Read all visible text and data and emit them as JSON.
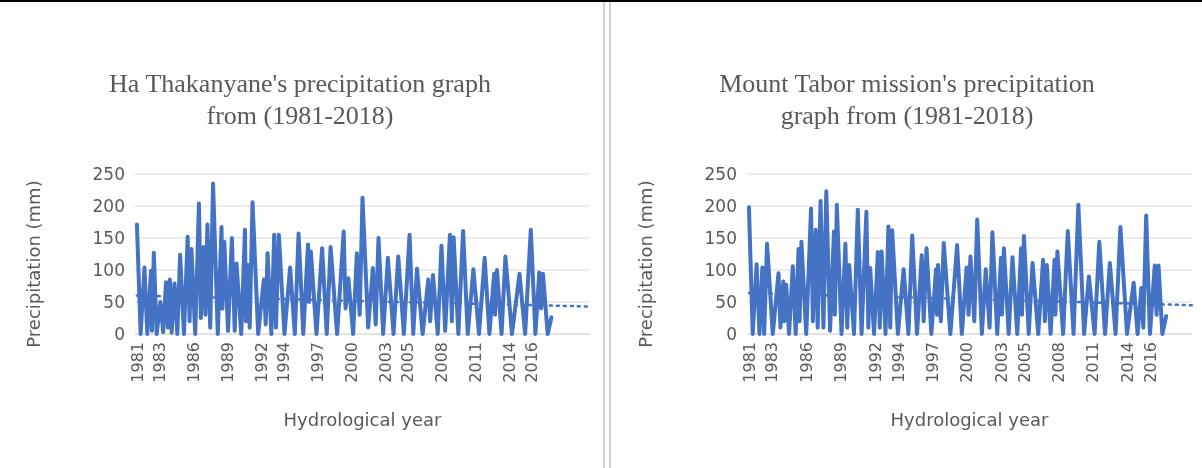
{
  "chart_data": [
    {
      "type": "line",
      "title": "Ha Thakanyane's precipitation graph from (1981-2018)",
      "xlabel": "Hydrological year",
      "ylabel": "Precipitation (mm)",
      "xlim": [
        1980.83,
        2021.17
      ],
      "xticks": [
        1981,
        1983,
        1986,
        1989,
        1992,
        1994,
        1997,
        2000,
        2003,
        2005,
        2008,
        2011,
        2014,
        2016
      ],
      "ylim": [
        0,
        250
      ],
      "yticks": [
        0,
        50,
        100,
        150,
        200,
        250
      ],
      "grid": "y",
      "series": [
        {
          "color": "#4472c4",
          "line_style": "solid",
          "x": [
            1981,
            1981.33,
            1981.67,
            1981.92,
            1982.25,
            1982.33,
            1982.5,
            1982.75,
            1983.08,
            1983.33,
            1983.58,
            1983.75,
            1983.92,
            1984.08,
            1984.33,
            1984.58,
            1984.83,
            1985.17,
            1985.5,
            1985.67,
            1985.83,
            1986.17,
            1986.5,
            1986.67,
            1986.92,
            1987.08,
            1987.25,
            1987.5,
            1987.75,
            1988.17,
            1988.5,
            1988.58,
            1988.75,
            1989.08,
            1989.42,
            1989.67,
            1989.83,
            1990.25,
            1990.58,
            1990.67,
            1990.83,
            1991,
            1991.25,
            1991.75,
            1992.25,
            1992.42,
            1992.58,
            1992.92,
            1993.17,
            1993.33,
            1993.58,
            1994.08,
            1994.58,
            1995,
            1995.33,
            1995.75,
            1996.17,
            1996.25,
            1996.42,
            1996.92,
            1997.42,
            1997.83,
            1998.17,
            1998.75,
            1999.33,
            1999.5,
            1999.75,
            2000.17,
            2000.5,
            2000.75,
            2001,
            2001.5,
            2001.92,
            2002.17,
            2002.42,
            2002.83,
            2003.25,
            2003.75,
            2004.17,
            2004.67,
            2005.17,
            2005.5,
            2005.83,
            2006.33,
            2006.83,
            2007,
            2007.25,
            2007.67,
            2008,
            2008.33,
            2008.75,
            2008.92,
            2009.08,
            2009.5,
            2009.92,
            2010.33,
            2010.83,
            2011.33,
            2011.83,
            2012.25,
            2012.67,
            2012.75,
            2012.92,
            2013.33,
            2013.67,
            2014.25,
            2014.92,
            2015.42,
            2015.92,
            2016.33,
            2016.67,
            2016.83,
            2017,
            2017.42,
            2017.75
          ],
          "values": [
            171,
            0,
            104,
            0,
            99,
            5,
            127,
            0,
            50,
            3,
            81,
            10,
            85,
            2,
            79,
            0,
            124,
            0,
            152,
            20,
            133,
            0,
            204,
            25,
            136,
            30,
            171,
            10,
            235,
            0,
            167,
            40,
            144,
            5,
            150,
            5,
            110,
            0,
            163,
            20,
            108,
            10,
            206,
            0,
            85,
            15,
            126,
            0,
            155,
            10,
            155,
            0,
            104,
            0,
            157,
            0,
            140,
            50,
            129,
            0,
            134,
            0,
            136,
            0,
            160,
            40,
            87,
            0,
            126,
            30,
            213,
            10,
            103,
            15,
            150,
            0,
            119,
            0,
            121,
            0,
            155,
            0,
            102,
            0,
            85,
            20,
            92,
            0,
            138,
            5,
            155,
            20,
            151,
            0,
            161,
            0,
            101,
            0,
            119,
            0,
            94,
            30,
            100,
            0,
            121,
            0,
            94,
            0,
            163,
            0,
            96,
            40,
            94,
            0,
            26
          ]
        },
        {
          "type": "line",
          "color": "#4472c4",
          "line_style": "dotted",
          "x": [
            1981,
            2021
          ],
          "values": [
            60,
            43
          ]
        }
      ]
    },
    {
      "type": "line",
      "title": "Mount Tabor mission's precipitation graph from (1981-2018)",
      "xlabel": "Hydrological year",
      "ylabel": "Precipitation (mm)",
      "xlim": [
        1980.83,
        2019.67
      ],
      "xticks": [
        1981,
        1983,
        1986,
        1989,
        1992,
        1994,
        1997,
        2000,
        2003,
        2005,
        2008,
        2011,
        2014,
        2016
      ],
      "ylim": [
        0,
        250
      ],
      "yticks": [
        0,
        50,
        100,
        150,
        200,
        250
      ],
      "grid": "y",
      "series": [
        {
          "color": "#4472c4",
          "line_style": "solid",
          "x": [
            1981,
            1981.33,
            1981.67,
            1981.92,
            1982.17,
            1982.33,
            1982.58,
            1983.08,
            1983.58,
            1983.75,
            1984,
            1984.08,
            1984.25,
            1984.5,
            1984.83,
            1985.08,
            1985.33,
            1985.42,
            1985.58,
            1986,
            1986.42,
            1986.58,
            1986.83,
            1987,
            1987.25,
            1987.5,
            1987.75,
            1988.08,
            1988.42,
            1988.5,
            1988.67,
            1989.08,
            1989.42,
            1989.58,
            1989.75,
            1990.17,
            1990.5,
            1990.83,
            1991.25,
            1991.42,
            1991.58,
            1991.92,
            1992.25,
            1992.42,
            1992.58,
            1992.92,
            1993.17,
            1993.33,
            1993.5,
            1994,
            1994.5,
            1994.92,
            1995.25,
            1995.67,
            1996.08,
            1996.25,
            1996.5,
            1996.92,
            1997.33,
            1997.42,
            1997.5,
            1997.75,
            1998,
            1998.58,
            1999.17,
            1999.58,
            2000,
            2000.17,
            2000.33,
            2000.67,
            2000.92,
            2001.33,
            2001.67,
            2002,
            2002.25,
            2002.67,
            2003,
            2003.08,
            2003.25,
            2003.67,
            2004,
            2004.42,
            2004.75,
            2004.83,
            2005,
            2005.42,
            2005.75,
            2006.25,
            2006.67,
            2006.83,
            2007,
            2007.33,
            2007.67,
            2007.75,
            2007.92,
            2008.42,
            2008.83,
            2009.33,
            2009.75,
            2010.25,
            2010.67,
            2011.17,
            2011.58,
            2012.08,
            2012.5,
            2013,
            2013.42,
            2014,
            2014.58,
            2014.92,
            2015.25,
            2015.42,
            2015.67,
            2016,
            2016.42,
            2016.58,
            2016.75,
            2017.08,
            2017.42
          ],
          "values": [
            198,
            0,
            109,
            0,
            104,
            0,
            141,
            0,
            95,
            10,
            82,
            20,
            77,
            0,
            106,
            0,
            133,
            20,
            144,
            0,
            196,
            20,
            163,
            10,
            208,
            10,
            223,
            5,
            160,
            30,
            202,
            0,
            141,
            10,
            108,
            0,
            194,
            0,
            191,
            10,
            103,
            0,
            128,
            10,
            129,
            0,
            168,
            10,
            162,
            0,
            101,
            0,
            154,
            0,
            123,
            20,
            134,
            0,
            101,
            30,
            108,
            20,
            142,
            0,
            139,
            0,
            104,
            30,
            121,
            20,
            179,
            0,
            101,
            10,
            159,
            0,
            119,
            30,
            134,
            0,
            120,
            0,
            134,
            30,
            153,
            0,
            111,
            0,
            116,
            20,
            108,
            0,
            116,
            30,
            129,
            0,
            161,
            0,
            202,
            0,
            90,
            0,
            144,
            0,
            111,
            0,
            167,
            0,
            80,
            0,
            72,
            10,
            185,
            0,
            107,
            30,
            107,
            0,
            28
          ]
        },
        {
          "type": "line",
          "color": "#4472c4",
          "line_style": "dotted",
          "x": [
            1981,
            2019.67
          ],
          "values": [
            64,
            45
          ]
        }
      ]
    }
  ]
}
